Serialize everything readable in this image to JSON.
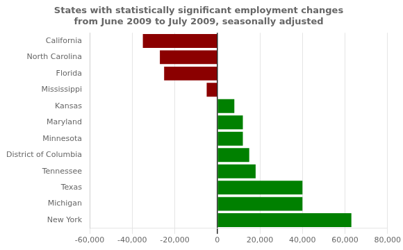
{
  "chart_data": {
    "type": "bar",
    "orientation": "horizontal",
    "title": "States with statistically significant employment changes\nfrom June 2009 to July 2009, seasonally adjusted",
    "categories": [
      "California",
      "North Carolina",
      "Florida",
      "Mississippi",
      "Kansas",
      "Maryland",
      "Minnesota",
      "District of Columbia",
      "Tennessee",
      "Texas",
      "Michigan",
      "New York"
    ],
    "values": [
      -35000,
      -27000,
      -25000,
      -5000,
      8000,
      12000,
      12000,
      15000,
      18000,
      40000,
      40000,
      63000
    ],
    "colors": [
      "#8B0000",
      "#8B0000",
      "#8B0000",
      "#8B0000",
      "#008000",
      "#008000",
      "#008000",
      "#008000",
      "#008000",
      "#008000",
      "#008000",
      "#008000"
    ],
    "xlim": [
      -60000,
      80000
    ],
    "xticks": [
      {
        "value": -60000,
        "label": "-60,000"
      },
      {
        "value": -40000,
        "label": "-40,000"
      },
      {
        "value": -20000,
        "label": "-20,000"
      },
      0,
      {
        "value": 20000,
        "label": "20,000"
      },
      {
        "value": 40000,
        "label": "40,000"
      },
      {
        "value": 60000,
        "label": "60,000"
      },
      {
        "value": 80000,
        "label": "80,000"
      }
    ],
    "grid": true
  }
}
